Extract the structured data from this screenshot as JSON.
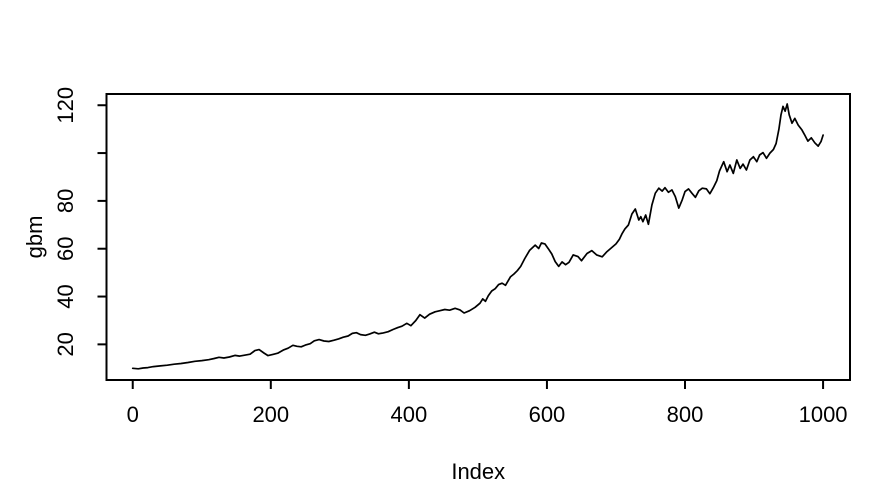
{
  "figure": {
    "background": "#ffffff",
    "axis_color": "#000000",
    "line_color": "#000000"
  },
  "chart_data": {
    "type": "line",
    "title": "",
    "xlabel": "Index",
    "ylabel": "gbm",
    "grid": false,
    "legend_position": "none",
    "x_range_shown": [
      -38,
      1039
    ],
    "y_range_shown": [
      5.1,
      124.7
    ],
    "x_ticks": [
      {
        "v": 0,
        "label": "0"
      },
      {
        "v": 200,
        "label": "200"
      },
      {
        "v": 400,
        "label": "400"
      },
      {
        "v": 600,
        "label": "600"
      },
      {
        "v": 800,
        "label": "800"
      },
      {
        "v": 1000,
        "label": "1000"
      }
    ],
    "y_ticks": [
      {
        "v": 20,
        "label": "20"
      },
      {
        "v": 40,
        "label": "40"
      },
      {
        "v": 60,
        "label": "60"
      },
      {
        "v": 80,
        "label": "80"
      },
      {
        "v": 100,
        "label": ""
      },
      {
        "v": 120,
        "label": "120"
      }
    ],
    "series": [
      {
        "name": "gbm",
        "color": "#000000",
        "points": [
          [
            0,
            10
          ],
          [
            8,
            9.8
          ],
          [
            15,
            10.1
          ],
          [
            22,
            10.3
          ],
          [
            30,
            10.7
          ],
          [
            40,
            11
          ],
          [
            50,
            11.3
          ],
          [
            60,
            11.7
          ],
          [
            70,
            12
          ],
          [
            80,
            12.4
          ],
          [
            90,
            12.9
          ],
          [
            100,
            13.2
          ],
          [
            110,
            13.6
          ],
          [
            118,
            14.1
          ],
          [
            125,
            14.6
          ],
          [
            132,
            14.3
          ],
          [
            140,
            14.7
          ],
          [
            148,
            15.4
          ],
          [
            155,
            15.1
          ],
          [
            163,
            15.5
          ],
          [
            170,
            15.9
          ],
          [
            177,
            17.4
          ],
          [
            183,
            17.8
          ],
          [
            190,
            16.4
          ],
          [
            196,
            15.3
          ],
          [
            203,
            15.8
          ],
          [
            210,
            16.3
          ],
          [
            218,
            17.6
          ],
          [
            225,
            18.4
          ],
          [
            232,
            19.6
          ],
          [
            238,
            19.2
          ],
          [
            244,
            19
          ],
          [
            250,
            19.7
          ],
          [
            257,
            20.3
          ],
          [
            263,
            21.5
          ],
          [
            270,
            22
          ],
          [
            277,
            21.4
          ],
          [
            284,
            21.2
          ],
          [
            291,
            21.7
          ],
          [
            298,
            22.3
          ],
          [
            305,
            23
          ],
          [
            312,
            23.5
          ],
          [
            318,
            24.6
          ],
          [
            324,
            24.9
          ],
          [
            330,
            24.1
          ],
          [
            337,
            23.8
          ],
          [
            343,
            24.3
          ],
          [
            350,
            25.1
          ],
          [
            356,
            24.4
          ],
          [
            363,
            24.8
          ],
          [
            370,
            25.3
          ],
          [
            377,
            26.2
          ],
          [
            384,
            27
          ],
          [
            390,
            27.6
          ],
          [
            397,
            28.8
          ],
          [
            403,
            27.8
          ],
          [
            410,
            30
          ],
          [
            416,
            32.4
          ],
          [
            423,
            31
          ],
          [
            430,
            32.6
          ],
          [
            438,
            33.6
          ],
          [
            445,
            34.1
          ],
          [
            452,
            34.6
          ],
          [
            459,
            34.3
          ],
          [
            467,
            35.1
          ],
          [
            474,
            34.4
          ],
          [
            480,
            33.1
          ],
          [
            488,
            34.1
          ],
          [
            496,
            35.5
          ],
          [
            503,
            37.2
          ],
          [
            507,
            39
          ],
          [
            511,
            38
          ],
          [
            515,
            40.3
          ],
          [
            520,
            42.3
          ],
          [
            525,
            43.3
          ],
          [
            530,
            45
          ],
          [
            535,
            45.6
          ],
          [
            540,
            44.7
          ],
          [
            547,
            48.2
          ],
          [
            552,
            49.4
          ],
          [
            557,
            50.8
          ],
          [
            562,
            52.6
          ],
          [
            568,
            55.9
          ],
          [
            575,
            59.4
          ],
          [
            583,
            61.5
          ],
          [
            588,
            60.1
          ],
          [
            592,
            62.4
          ],
          [
            597,
            62
          ],
          [
            602,
            60
          ],
          [
            607,
            57.8
          ],
          [
            612,
            54.6
          ],
          [
            617,
            52.6
          ],
          [
            622,
            54.5
          ],
          [
            627,
            53.3
          ],
          [
            632,
            54.3
          ],
          [
            638,
            57.4
          ],
          [
            645,
            56.7
          ],
          [
            650,
            55
          ],
          [
            658,
            58
          ],
          [
            665,
            59.2
          ],
          [
            672,
            57.4
          ],
          [
            680,
            56.6
          ],
          [
            687,
            58.8
          ],
          [
            694,
            60.5
          ],
          [
            700,
            62
          ],
          [
            705,
            64
          ],
          [
            709,
            66.4
          ],
          [
            713,
            68.3
          ],
          [
            718,
            69.9
          ],
          [
            723,
            74.5
          ],
          [
            728,
            76.6
          ],
          [
            733,
            72
          ],
          [
            736,
            73.4
          ],
          [
            739,
            71.3
          ],
          [
            743,
            74.1
          ],
          [
            747,
            70.2
          ],
          [
            752,
            78.3
          ],
          [
            757,
            83.2
          ],
          [
            762,
            85.3
          ],
          [
            767,
            84.1
          ],
          [
            771,
            85.5
          ],
          [
            776,
            83.6
          ],
          [
            781,
            84.6
          ],
          [
            786,
            81.8
          ],
          [
            791,
            77
          ],
          [
            796,
            80.4
          ],
          [
            800,
            83.9
          ],
          [
            805,
            85
          ],
          [
            810,
            83.2
          ],
          [
            815,
            81.5
          ],
          [
            820,
            84.2
          ],
          [
            825,
            85.3
          ],
          [
            831,
            85
          ],
          [
            836,
            83
          ],
          [
            841,
            85.5
          ],
          [
            846,
            88.5
          ],
          [
            850,
            92.5
          ],
          [
            856,
            96.4
          ],
          [
            861,
            92.2
          ],
          [
            865,
            95
          ],
          [
            870,
            91.5
          ],
          [
            875,
            97.1
          ],
          [
            880,
            93.6
          ],
          [
            884,
            95.4
          ],
          [
            889,
            92.9
          ],
          [
            894,
            97.1
          ],
          [
            899,
            98.5
          ],
          [
            904,
            96.4
          ],
          [
            908,
            99.2
          ],
          [
            913,
            100.2
          ],
          [
            918,
            97.8
          ],
          [
            923,
            100
          ],
          [
            928,
            101.5
          ],
          [
            932,
            104
          ],
          [
            936,
            110
          ],
          [
            939,
            116
          ],
          [
            942,
            119.5
          ],
          [
            945,
            117.5
          ],
          [
            948,
            120.5
          ],
          [
            951,
            116
          ],
          [
            955,
            112.5
          ],
          [
            959,
            114.5
          ],
          [
            964,
            111.7
          ],
          [
            969,
            109.8
          ],
          [
            973,
            107.8
          ],
          [
            978,
            105
          ],
          [
            983,
            106.4
          ],
          [
            988,
            104.3
          ],
          [
            993,
            102.9
          ],
          [
            997,
            104.8
          ],
          [
            1000,
            107.5
          ]
        ]
      }
    ]
  }
}
